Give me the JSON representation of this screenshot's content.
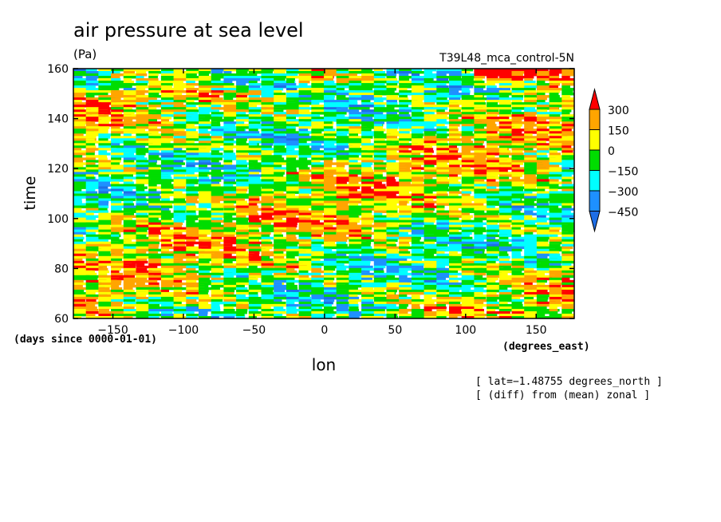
{
  "chart_data": {
    "type": "heatmap",
    "title": "air pressure at sea level",
    "units": "(Pa)",
    "experiment": "T39L48_mca_control-5N",
    "xlabel": "lon",
    "xunits": "(degrees_east)",
    "ylabel": "time",
    "yunits": "(days since 0000-01-01)",
    "x_ticks": [
      -150,
      -100,
      -50,
      0,
      50,
      100,
      150
    ],
    "y_ticks": [
      60,
      80,
      100,
      120,
      140,
      160
    ],
    "xlim": [
      -178,
      177
    ],
    "ylim": [
      60,
      160
    ],
    "colorbar": {
      "levels": [
        300,
        150,
        0,
        -150,
        -300,
        -450
      ],
      "level_labels": [
        "300",
        "150",
        "0",
        "−150",
        "−300",
        "−450"
      ],
      "colors": [
        "#ff0000",
        "#ffa500",
        "#ffff00",
        "#00dd00",
        "#00ffff",
        "#1e90ff",
        "#1e6ee6"
      ],
      "extend": "both"
    },
    "notes": [
      "[ lat=−1.48755 degrees_north ]",
      "[ (diff) from (mean) zonal ]"
    ],
    "grid": false
  }
}
